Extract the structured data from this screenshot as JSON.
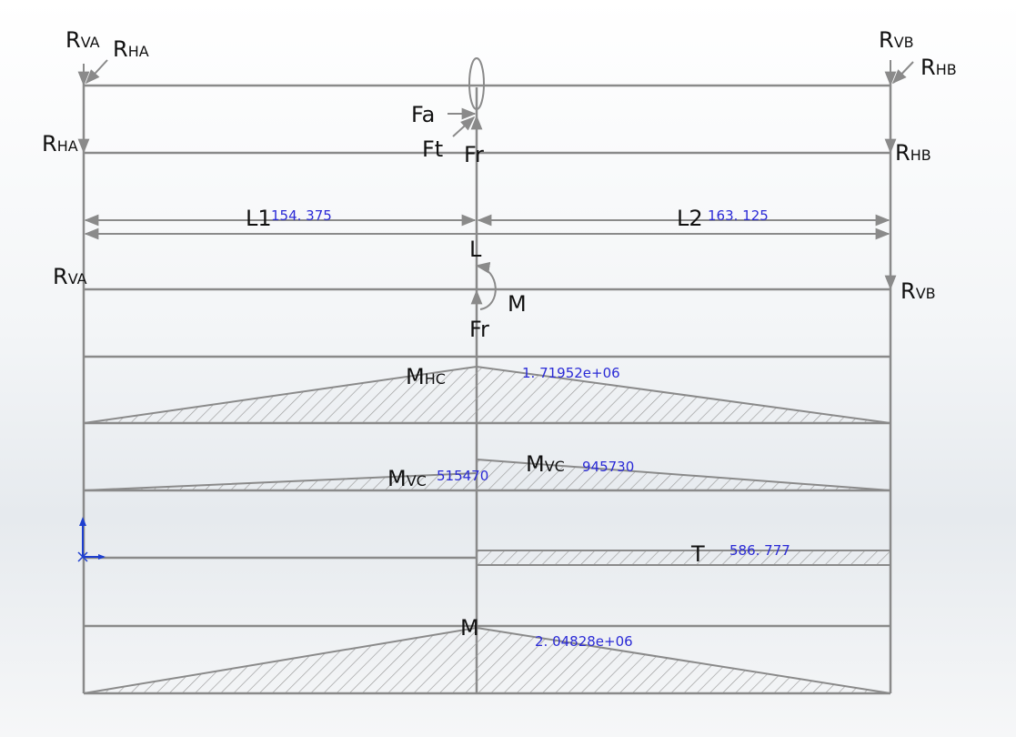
{
  "colors": {
    "line": "#8a8a8a",
    "text": "#111111",
    "dimension": "#2a2ad6",
    "hatch": "#9a9a9a",
    "triad": "#1e3fd0"
  },
  "labels": {
    "rva_top_main": "R",
    "rva_top_sub": "VA",
    "rha_top_main": "R",
    "rha_top_sub": "HA",
    "rvb_top_main": "R",
    "rvb_top_sub": "VB",
    "rhb_top_main": "R",
    "rhb_top_sub": "HB",
    "fa": "Fa",
    "ft": "Ft",
    "fr_top": "Fr",
    "rha_mid_main": "R",
    "rha_mid_sub": "HA",
    "rhb_mid_main": "R",
    "rhb_mid_sub": "HB",
    "l1": "L1",
    "l2": "L2",
    "l": "L",
    "rva_mid_main": "R",
    "rva_mid_sub": "VA",
    "rvb_mid_main": "R",
    "rvb_mid_sub": "VB",
    "m_moment": "M",
    "fr_bottom": "Fr",
    "mhc_main": "M",
    "mhc_sub": "HC",
    "mvc1_main": "M",
    "mvc1_sub": "VC",
    "mvc2_main": "M",
    "mvc2_sub": "VC",
    "t": "T",
    "m_total": "M"
  },
  "dimensions": {
    "l1": "154. 375",
    "l2": "163. 125",
    "mhc": "1. 71952e+06",
    "mvc_left": "515470",
    "mvc_right": "945730",
    "torque": "586. 777",
    "m_total": "2. 04828e+06"
  }
}
